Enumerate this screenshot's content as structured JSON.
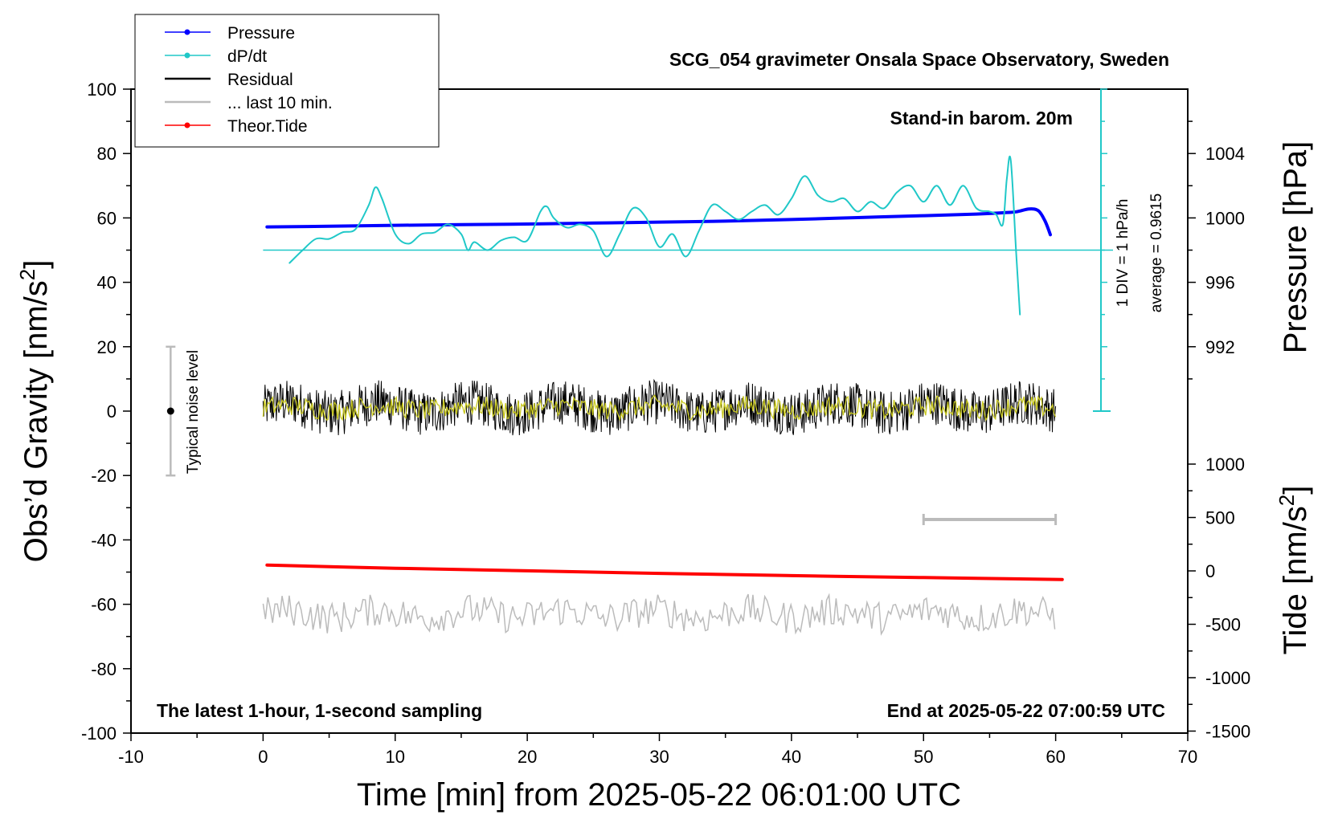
{
  "chart_data": {
    "type": "line",
    "title": "SCG_054 gravimeter Onsala Space Observatory, Sweden",
    "xlabel": "Time [min] from 2025-05-22 06:01:00 UTC",
    "xlim": [
      -10,
      70
    ],
    "xticks": [
      "-10",
      "0",
      "10",
      "20",
      "30",
      "40",
      "50",
      "60",
      "70"
    ],
    "y_left": {
      "label": "Obs’d Gravity [nm/s",
      "label_sup": "2",
      "label_end": "]",
      "lim": [
        -100,
        100
      ],
      "ticks": [
        "100",
        "80",
        "60",
        "40",
        "20",
        "0",
        "-20",
        "-40",
        "-60",
        "-80",
        "-100"
      ]
    },
    "y_right_pressure": {
      "label": "Pressure [hPa]",
      "ticks": [
        "1004",
        "1000",
        "996",
        "992"
      ],
      "values": [
        1004,
        1000,
        996,
        992
      ]
    },
    "y_right_tide": {
      "label": "Tide [nm/s",
      "label_sup": "2",
      "label_end": "]",
      "ticks": [
        "1000",
        "500",
        "0",
        "-500",
        "-1000",
        "-1500"
      ],
      "values": [
        1000,
        500,
        0,
        -500,
        -1000,
        -1500
      ]
    },
    "legend": {
      "placement": "top-left",
      "entries": [
        {
          "name": "Pressure",
          "color": "#0000ff",
          "marker": true
        },
        {
          "name": "dP/dt",
          "color": "#20c8c8",
          "marker": true
        },
        {
          "name": "Residual",
          "color": "#000000",
          "marker": false
        },
        {
          "name": "... last 10 min.",
          "color": "#bbbbbb",
          "marker": false
        },
        {
          "name": "Theor.Tide",
          "color": "#ff0000",
          "marker": true
        }
      ]
    },
    "annotations": {
      "barometer": "Stand-in barom. 20m",
      "div_note": "1 DIV = 1 hPa/h",
      "average_note": "average = 0.9615",
      "noise_label": "Typical noise level",
      "latest_note": "The latest 1-hour, 1-second sampling",
      "end_note": "End at 2025-05-22 07:00:59 UTC"
    },
    "noise_bar": {
      "x": -7,
      "y_center": 0,
      "y_range": [
        -20,
        20
      ]
    },
    "last10_bar": {
      "x_range": [
        50,
        60
      ]
    },
    "series": [
      {
        "name": "Pressure",
        "color": "#0000ff",
        "points": [
          [
            0.3,
            57.2
          ],
          [
            5,
            57.4
          ],
          [
            10,
            57.7
          ],
          [
            15,
            57.9
          ],
          [
            20,
            58.1
          ],
          [
            25,
            58.4
          ],
          [
            30,
            58.7
          ],
          [
            35,
            59.0
          ],
          [
            40,
            59.5
          ],
          [
            45,
            60.1
          ],
          [
            50,
            60.7
          ],
          [
            54,
            61.2
          ],
          [
            56,
            61.6
          ],
          [
            57,
            61.9
          ],
          [
            58,
            62.8
          ],
          [
            58.7,
            62.2
          ],
          [
            59.2,
            59.0
          ],
          [
            59.6,
            54.8
          ]
        ]
      },
      {
        "name": "dP/dt",
        "color": "#20c8c8",
        "points": [
          [
            2,
            46
          ],
          [
            3,
            50
          ],
          [
            4,
            53.5
          ],
          [
            5,
            53.5
          ],
          [
            6,
            55.5
          ],
          [
            7,
            56.5
          ],
          [
            8,
            64
          ],
          [
            8.5,
            69.5
          ],
          [
            9,
            66
          ],
          [
            10,
            55
          ],
          [
            11,
            52
          ],
          [
            12,
            55
          ],
          [
            13,
            55.5
          ],
          [
            14,
            58
          ],
          [
            15,
            55
          ],
          [
            15.5,
            50
          ],
          [
            16,
            52.5
          ],
          [
            17,
            50
          ],
          [
            18,
            53
          ],
          [
            19,
            54
          ],
          [
            20,
            53
          ],
          [
            21,
            62
          ],
          [
            21.5,
            63.5
          ],
          [
            22,
            60
          ],
          [
            23,
            57
          ],
          [
            24,
            58
          ],
          [
            25,
            56
          ],
          [
            26,
            48
          ],
          [
            27,
            55
          ],
          [
            28,
            63
          ],
          [
            29,
            60
          ],
          [
            30,
            51
          ],
          [
            31,
            55
          ],
          [
            32,
            48
          ],
          [
            33,
            56
          ],
          [
            34,
            64
          ],
          [
            35,
            62
          ],
          [
            36,
            59.5
          ],
          [
            37,
            62
          ],
          [
            38,
            64
          ],
          [
            39,
            61
          ],
          [
            40,
            66
          ],
          [
            41,
            73
          ],
          [
            42,
            67
          ],
          [
            43,
            65
          ],
          [
            44,
            66
          ],
          [
            45,
            62
          ],
          [
            46,
            65
          ],
          [
            47,
            63
          ],
          [
            48,
            68
          ],
          [
            49,
            70
          ],
          [
            50,
            65
          ],
          [
            51,
            70
          ],
          [
            52,
            64
          ],
          [
            53,
            70
          ],
          [
            54,
            63
          ],
          [
            55,
            62
          ],
          [
            55.5,
            61
          ],
          [
            56,
            58
          ],
          [
            56.3,
            72
          ],
          [
            56.6,
            78
          ],
          [
            57.0,
            50
          ],
          [
            57.3,
            30
          ]
        ]
      },
      {
        "name": "Theor.Tide",
        "color": "#ff0000",
        "points": [
          [
            0.3,
            -47.8
          ],
          [
            10,
            -48.8
          ],
          [
            20,
            -49.6
          ],
          [
            30,
            -50.4
          ],
          [
            40,
            -51.1
          ],
          [
            50,
            -51.7
          ],
          [
            60.5,
            -52.3
          ]
        ]
      },
      {
        "name": "Residual",
        "color": "#000000",
        "noise": true,
        "x_range": [
          0,
          60
        ],
        "center": 1,
        "amplitude": 7
      },
      {
        "name": "... last 10 min.",
        "color": "#bbbbbb",
        "noise": true,
        "x_range": [
          0,
          60
        ],
        "center": -63,
        "amplitude": 5
      }
    ]
  }
}
